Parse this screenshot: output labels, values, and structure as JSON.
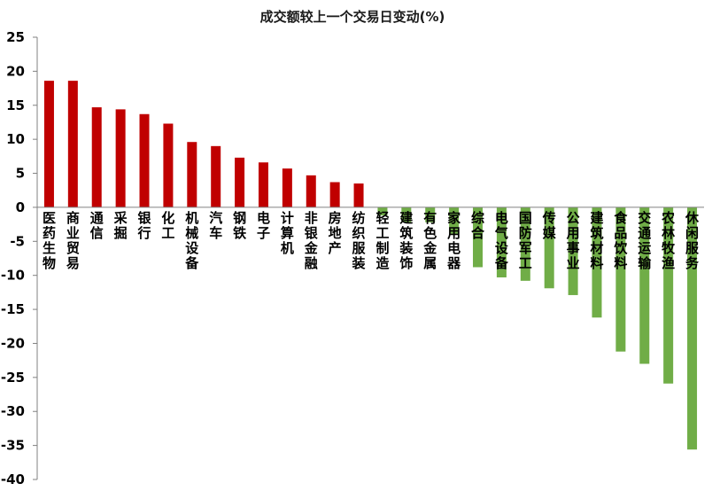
{
  "chart_data": {
    "type": "bar",
    "title": "成交额较上一个交易日变动(%)",
    "xlabel": "",
    "ylabel": "",
    "ylim": [
      -40,
      25
    ],
    "yticks": [
      25,
      20,
      15,
      10,
      5,
      0,
      -5,
      -10,
      -15,
      -20,
      -25,
      -30,
      -35,
      -40
    ],
    "grid": false,
    "legend": "none",
    "colors": {
      "positive": "#C00000",
      "negative": "#70AD47",
      "axis": "#808080"
    },
    "categories": [
      "医药生物",
      "商业贸易",
      "通信",
      "采掘",
      "银行",
      "化工",
      "机械设备",
      "汽车",
      "钢铁",
      "电子",
      "计算机",
      "非银金融",
      "房地产",
      "纺织服装",
      "轻工制造",
      "建筑装饰",
      "有色金属",
      "家用电器",
      "综合",
      "电气设备",
      "国防军工",
      "传媒",
      "公用事业",
      "建筑材料",
      "食品饮料",
      "交通运输",
      "农林牧渔",
      "休闲服务"
    ],
    "values": [
      18.6,
      18.6,
      14.7,
      14.4,
      13.7,
      12.3,
      9.6,
      9.0,
      7.3,
      6.6,
      5.7,
      4.7,
      3.7,
      3.5,
      -1.2,
      -2.2,
      -2.2,
      -3.9,
      -8.8,
      -10.3,
      -10.8,
      -11.9,
      -12.9,
      -16.2,
      -21.2,
      -23.0,
      -25.9,
      -35.6
    ]
  }
}
